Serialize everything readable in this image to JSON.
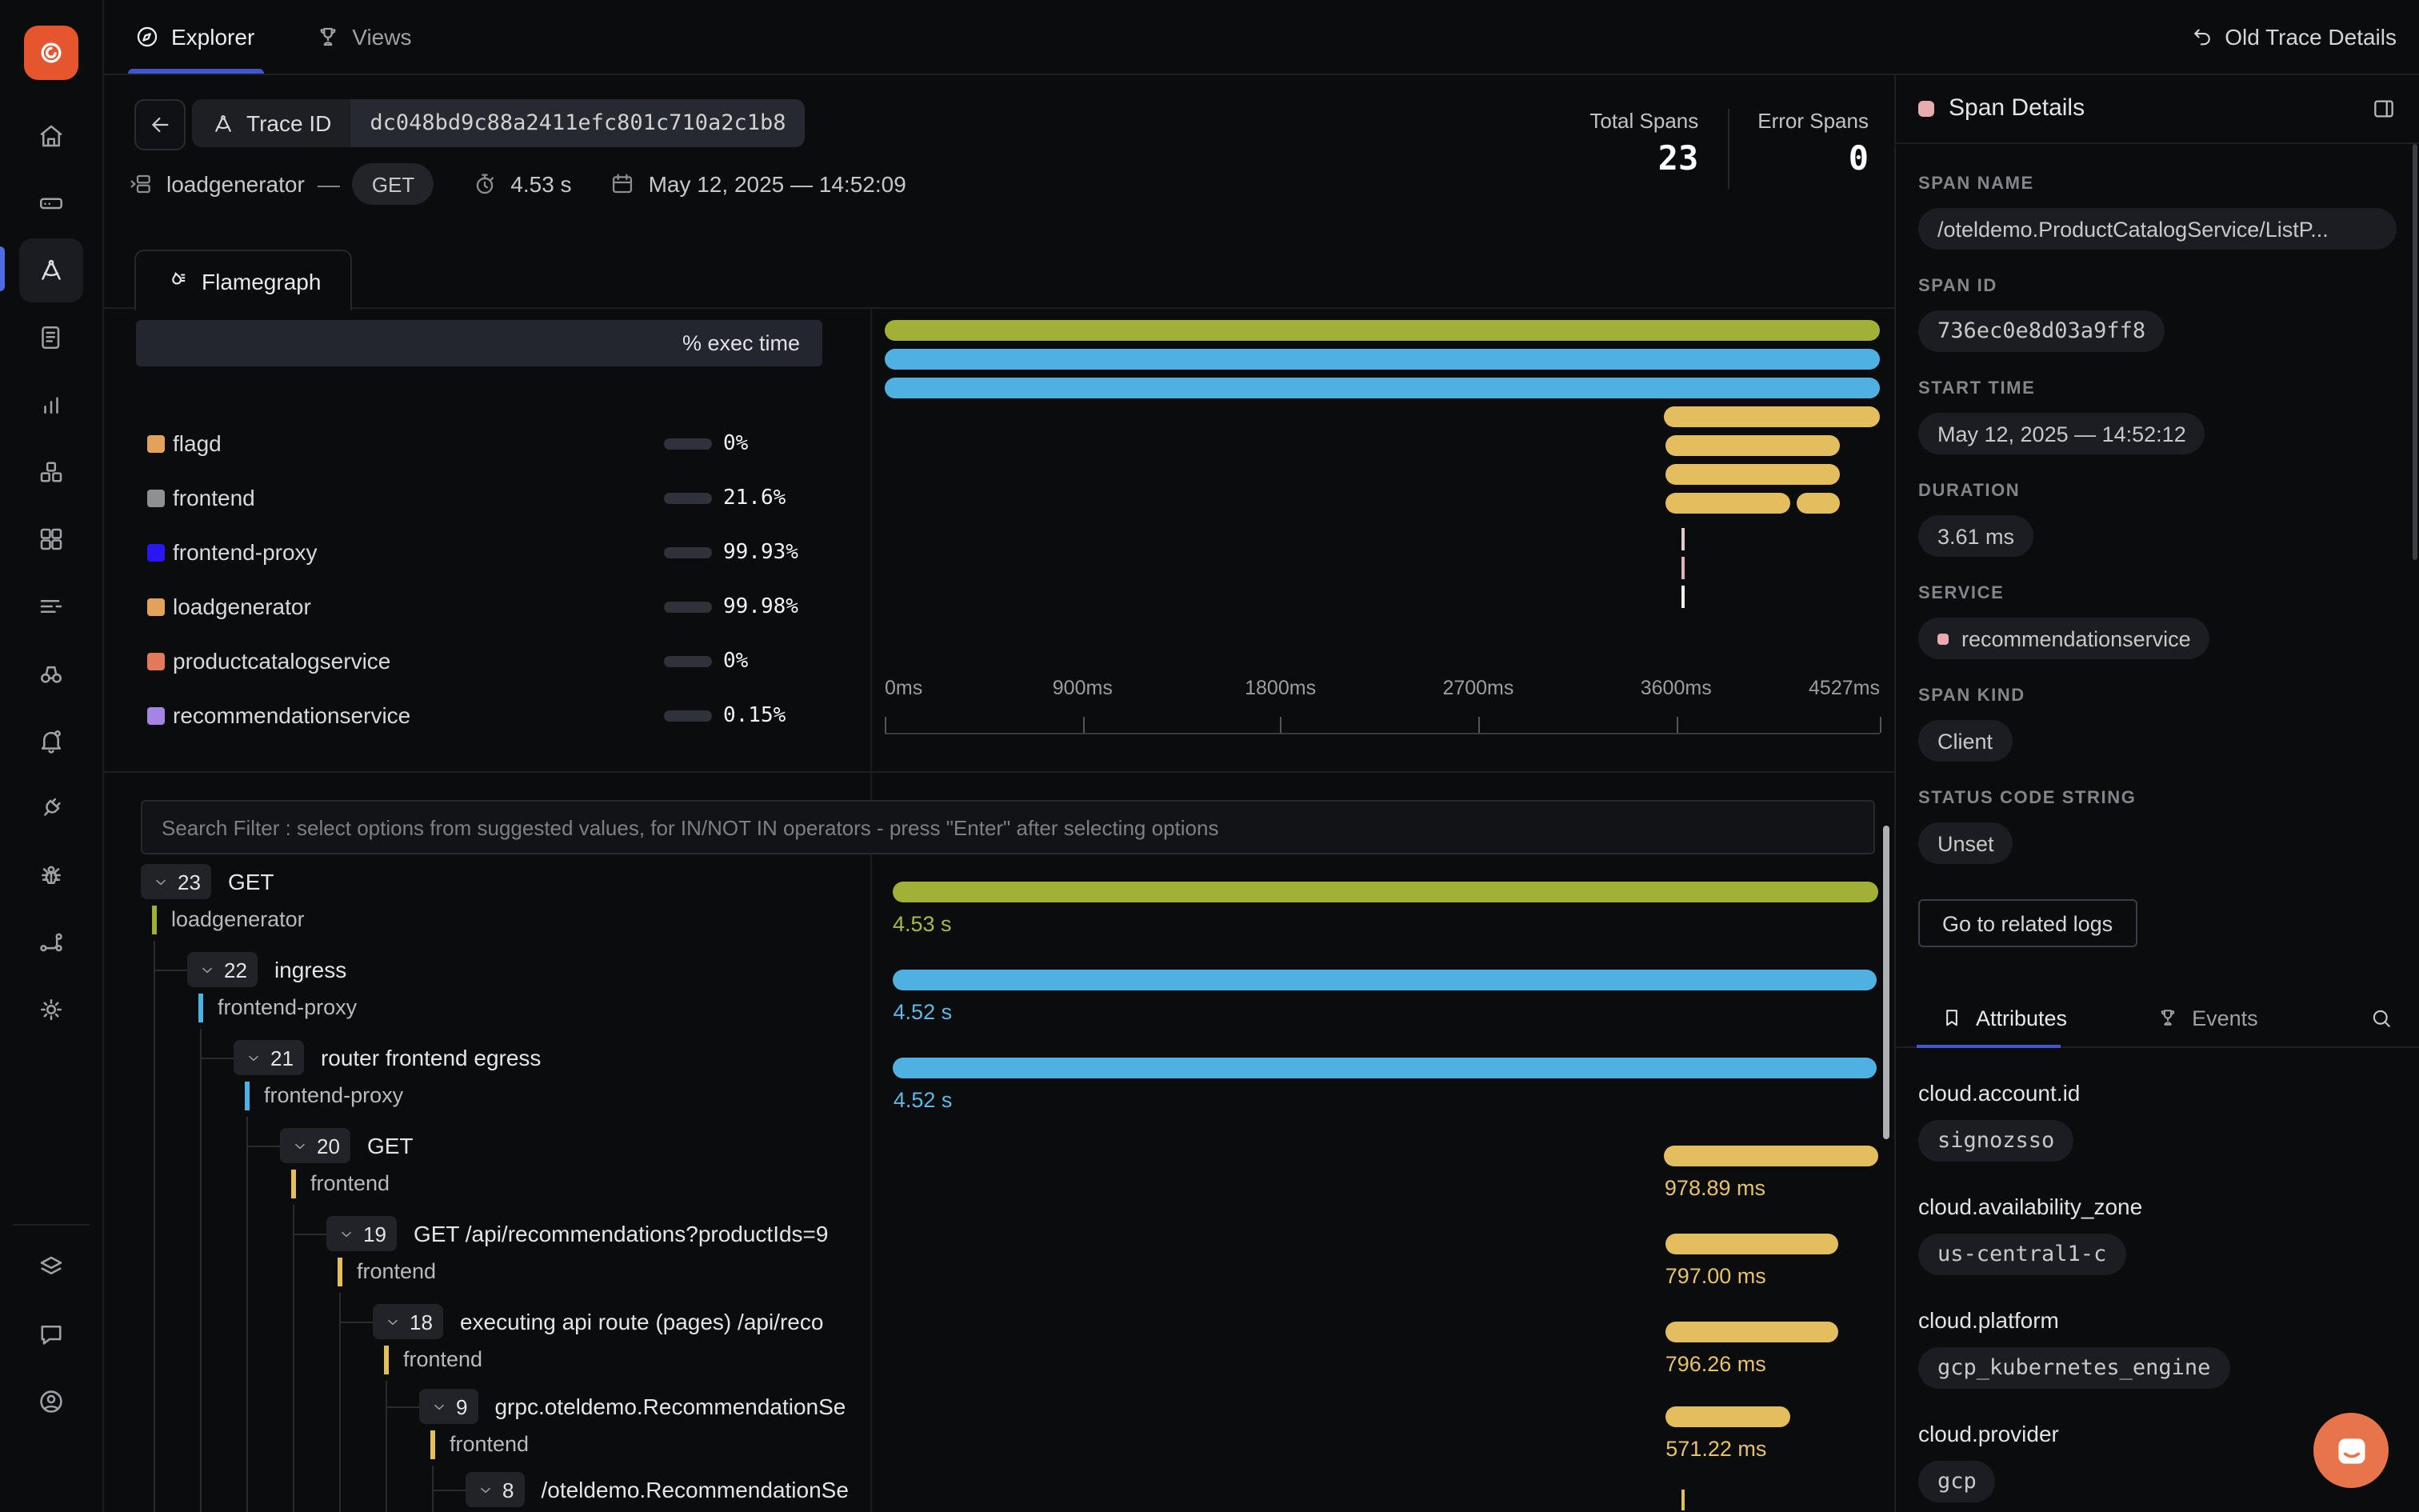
{
  "topnav": {
    "tabs": [
      {
        "label": "Explorer"
      },
      {
        "label": "Views"
      }
    ],
    "right_action": "Old Trace Details"
  },
  "trace_header": {
    "trace_id_label": "Trace ID",
    "trace_id": "dc048bd9c88a2411efc801c710a2c1b8",
    "total_spans_label": "Total Spans",
    "total_spans": "23",
    "error_spans_label": "Error Spans",
    "error_spans": "0",
    "service": "loadgenerator",
    "separator": "—",
    "method": "GET",
    "duration": "4.53 s",
    "timestamp": "May 12, 2025 — 14:52:09"
  },
  "flamegraph": {
    "tab_label": "Flamegraph",
    "legend_header": "% exec time"
  },
  "chart_data": [
    {
      "type": "bar",
      "title": "% exec time",
      "categories": [
        "flagd",
        "frontend",
        "frontend-proxy",
        "loadgenerator",
        "productcatalogservice",
        "recommendationservice"
      ],
      "values": [
        0,
        21.6,
        99.93,
        99.98,
        0,
        0.15
      ],
      "value_labels": [
        "0%",
        "21.6%",
        "99.93%",
        "99.98%",
        "0%",
        "0.15%"
      ],
      "swatch_colors": [
        "#e2a25b",
        "#8e9093",
        "#2817f0",
        "#e2a25b",
        "#e2795b",
        "#a584e4"
      ],
      "fill_color": "#4166f5",
      "ylim": [
        0,
        100
      ]
    },
    {
      "type": "flamegraph",
      "x_unit": "ms",
      "xlim": [
        0,
        4527
      ],
      "ticks": [
        {
          "label": "0ms",
          "ms": 0
        },
        {
          "label": "900ms",
          "ms": 900
        },
        {
          "label": "1800ms",
          "ms": 1800
        },
        {
          "label": "2700ms",
          "ms": 2700
        },
        {
          "label": "3600ms",
          "ms": 3600
        },
        {
          "label": "4527ms",
          "ms": 4527
        }
      ],
      "rows": [
        {
          "color": "#a2b136",
          "segments": [
            [
              0,
              4527
            ]
          ]
        },
        {
          "color": "#4fb0e2",
          "segments": [
            [
              0,
              4527
            ]
          ]
        },
        {
          "color": "#4fb0e2",
          "segments": [
            [
              0,
              4527
            ]
          ]
        },
        {
          "color": "#e4bd5e",
          "segments": [
            [
              3548,
              4527
            ]
          ]
        },
        {
          "color": "#e4bd5e",
          "segments": [
            [
              3551,
              4348
            ]
          ]
        },
        {
          "color": "#e4bd5e",
          "segments": [
            [
              3551,
              4347
            ]
          ]
        },
        {
          "color": "#e4bd5e",
          "segments": [
            [
              3551,
              4122
            ],
            [
              4150,
              4345
            ]
          ]
        },
        {
          "color": "#e6c9c9",
          "segments": [
            [
              3625,
              3633
            ]
          ],
          "thin": true
        },
        {
          "color": "#d9b6ba",
          "segments": [
            [
              3625,
              3633
            ]
          ],
          "thin": true
        },
        {
          "color": "#f2f0ef",
          "segments": [
            [
              3625,
              3633
            ]
          ],
          "thin": true
        }
      ]
    }
  ],
  "search": {
    "placeholder": "Search Filter : select options from suggested values, for IN/NOT IN operators - press \"Enter\" after selecting options"
  },
  "span_tree": {
    "total_ms": 4530,
    "rows": [
      {
        "num": "23",
        "name": "GET",
        "service": "loadgenerator",
        "color": "#a2b136",
        "text_color": "#abba41",
        "start_ms": 0,
        "duration_ms": 4530,
        "duration_label": "4.53 s"
      },
      {
        "num": "22",
        "name": "ingress",
        "service": "frontend-proxy",
        "color": "#4fb0e2",
        "text_color": "#5cb9e8",
        "start_ms": 2,
        "duration_ms": 4524,
        "duration_label": "4.52 s"
      },
      {
        "num": "21",
        "name": "router frontend egress",
        "service": "frontend-proxy",
        "color": "#4fb0e2",
        "text_color": "#5cb9e8",
        "start_ms": 3,
        "duration_ms": 4523,
        "duration_label": "4.52 s"
      },
      {
        "num": "20",
        "name": "GET",
        "service": "frontend",
        "color": "#e4bd5e",
        "text_color": "#e7c368",
        "start_ms": 3548,
        "duration_ms": 979,
        "duration_label": "978.89 ms"
      },
      {
        "num": "19",
        "name": "GET /api/recommendations?productIds=9",
        "service": "frontend",
        "color": "#e4bd5e",
        "text_color": "#e7c368",
        "start_ms": 3551,
        "duration_ms": 797,
        "duration_label": "797.00 ms"
      },
      {
        "num": "18",
        "name": "executing api route (pages) /api/reco",
        "service": "frontend",
        "color": "#e4bd5e",
        "text_color": "#e7c368",
        "start_ms": 3551,
        "duration_ms": 796,
        "duration_label": "796.26 ms"
      },
      {
        "num": "9",
        "name": "grpc.oteldemo.RecommendationSe",
        "service": "frontend",
        "color": "#e4bd5e",
        "text_color": "#e7c368",
        "start_ms": 3553,
        "duration_ms": 571,
        "duration_label": "571.22 ms"
      },
      {
        "num": "8",
        "name": "/oteldemo.RecommendationSe",
        "service": "frontend",
        "color": "#e4bd5e",
        "text_color": "#e7c368",
        "start_ms": 3628,
        "duration_ms": 8,
        "duration_label": "",
        "thin": true
      }
    ]
  },
  "span_details": {
    "title": "Span Details",
    "accent_color": "#e8abaf",
    "span_name_label": "SPAN NAME",
    "span_name": "/oteldemo.ProductCatalogService/ListP...",
    "span_id_label": "SPAN ID",
    "span_id": "736ec0e8d03a9ff8",
    "start_time_label": "START TIME",
    "start_time": "May 12, 2025 — 14:52:12",
    "duration_label": "DURATION",
    "duration": "3.61 ms",
    "service_label": "SERVICE",
    "service": "recommendationservice",
    "span_kind_label": "SPAN KIND",
    "span_kind": "Client",
    "status_label": "STATUS CODE STRING",
    "status": "Unset",
    "logs_button": "Go to related logs",
    "tabs": [
      {
        "label": "Attributes"
      },
      {
        "label": "Events"
      }
    ],
    "attributes": [
      {
        "key": "cloud.account.id",
        "value": "signozsso"
      },
      {
        "key": "cloud.availability_zone",
        "value": "us-central1-c"
      },
      {
        "key": "cloud.platform",
        "value": "gcp_kubernetes_engine"
      },
      {
        "key": "cloud.provider",
        "value": "gcp"
      }
    ]
  },
  "sidebar": {
    "logo_color": "#e5562e",
    "items": [
      "home",
      "drive",
      "traces",
      "logs",
      "chart",
      "cubes",
      "grid",
      "list",
      "binoculars",
      "bell",
      "plug",
      "bug",
      "flow",
      "gear"
    ],
    "active_item": "traces",
    "bottom_items": [
      "layers",
      "message",
      "user"
    ]
  }
}
